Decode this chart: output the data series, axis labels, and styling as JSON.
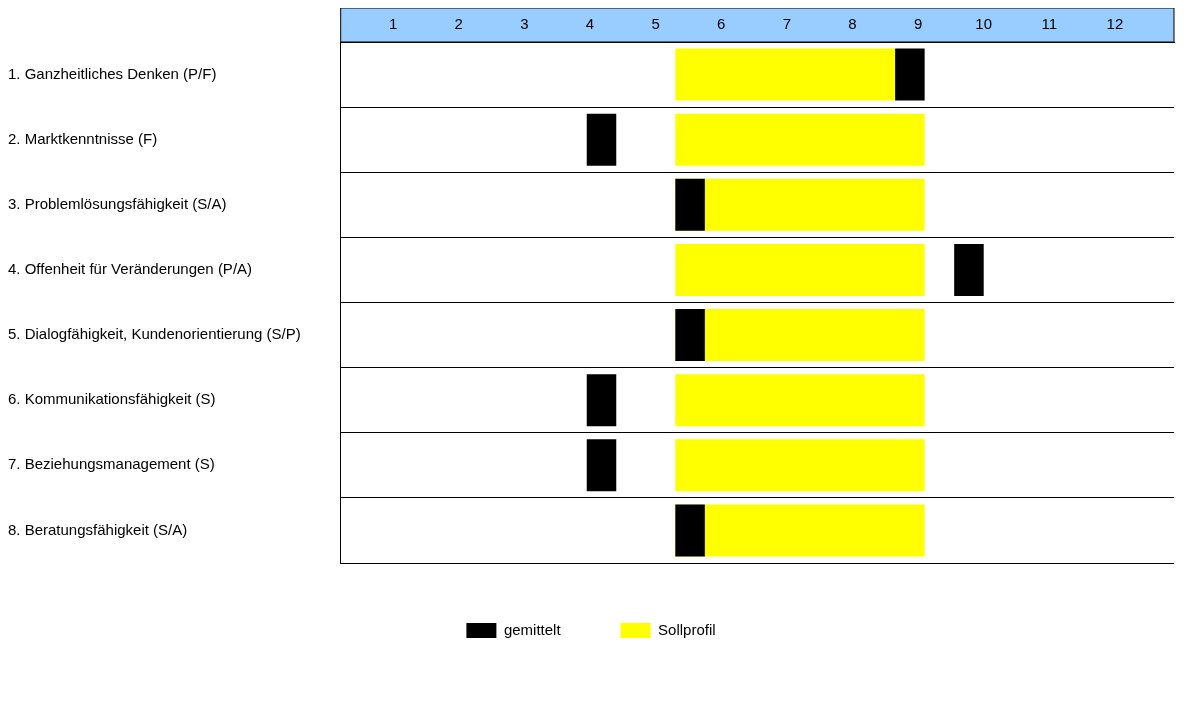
{
  "chart_data": {
    "type": "bar",
    "orientation": "horizontal",
    "categories": [
      "1. Ganzheitliches Denken (P/F)",
      "2. Marktkenntnisse (F)",
      "3. Problemlösungsfähigkeit (S/A)",
      "4. Offenheit für Veränderungen (P/A)",
      "5. Dialogfähigkeit, Kundenorientierung (S/P)",
      "6. Kommunikationsfähigkeit (S)",
      "7. Beziehungsmanagement (S)",
      "8. Beratungsfähigkeit (S/A)"
    ],
    "series": [
      {
        "name": "gemittelt",
        "color": "#000000",
        "base": [
          8.65,
          3.95,
          5.3,
          9.55,
          5.3,
          3.95,
          3.95,
          5.3
        ],
        "values": [
          0.45,
          0.45,
          0.45,
          0.45,
          0.45,
          0.45,
          0.45,
          0.45
        ]
      },
      {
        "name": "Sollprofil",
        "color": "#ffff00",
        "base": [
          5.3,
          5.3,
          5.3,
          5.3,
          5.3,
          5.3,
          5.3,
          5.3
        ],
        "values": [
          3.35,
          3.8,
          3.8,
          3.8,
          3.8,
          3.8,
          3.8,
          3.8
        ]
      }
    ],
    "xlim": [
      0.2,
      12.9
    ],
    "xticks": [
      1,
      2,
      3,
      4,
      5,
      6,
      7,
      8,
      9,
      10,
      11,
      12
    ],
    "grid": "y",
    "legend": "bottom"
  }
}
